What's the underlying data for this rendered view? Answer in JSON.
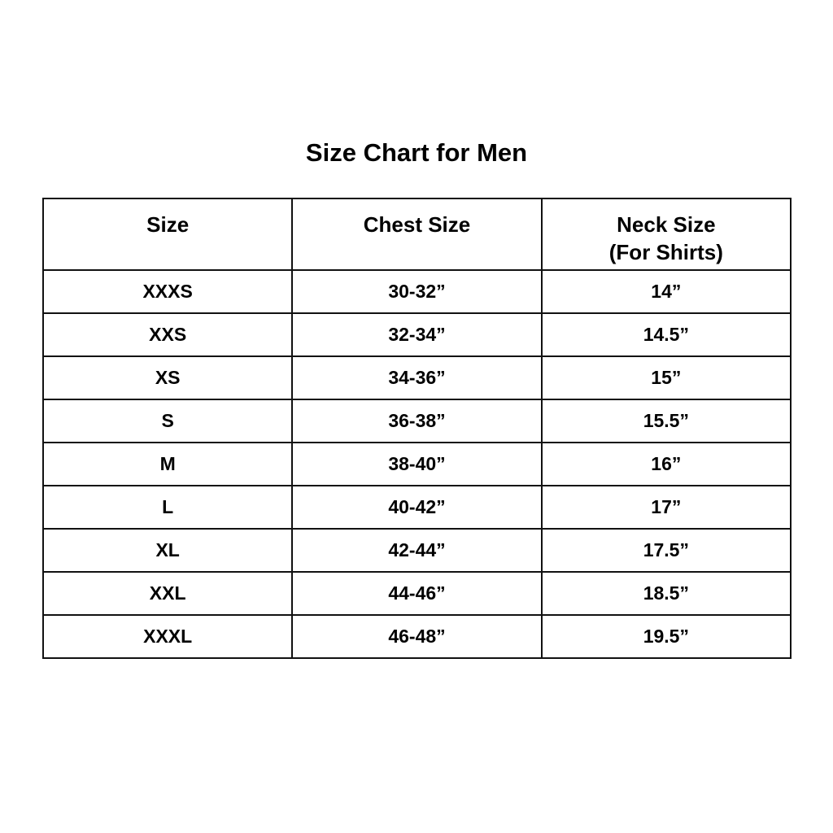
{
  "title": "Size Chart for Men",
  "table": {
    "headers": [
      {
        "line1": "Size",
        "line2": ""
      },
      {
        "line1": "Chest Size",
        "line2": ""
      },
      {
        "line1": "Neck Size",
        "line2": "(For Shirts)"
      }
    ],
    "rows": [
      [
        "XXXS",
        "30-32”",
        "14”"
      ],
      [
        "XXS",
        "32-34”",
        "14.5”"
      ],
      [
        "XS",
        "34-36”",
        "15”"
      ],
      [
        "S",
        "36-38”",
        "15.5”"
      ],
      [
        "M",
        "38-40”",
        "16”"
      ],
      [
        "L",
        "40-42”",
        "17”"
      ],
      [
        "XL",
        "42-44”",
        "17.5”"
      ],
      [
        "XXL",
        "44-46”",
        "18.5”"
      ],
      [
        "XXXL",
        "46-48”",
        "19.5”"
      ]
    ]
  }
}
